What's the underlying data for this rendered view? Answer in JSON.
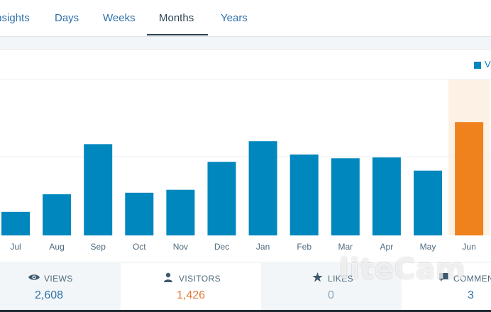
{
  "tabs": [
    {
      "label": "Insights",
      "active": false
    },
    {
      "label": "Days",
      "active": false
    },
    {
      "label": "Weeks",
      "active": false
    },
    {
      "label": "Months",
      "active": true
    },
    {
      "label": "Years",
      "active": false
    }
  ],
  "legend": {
    "label": "Views",
    "color": "#0087be"
  },
  "chart_data": {
    "type": "bar",
    "categories": [
      "Jul",
      "Aug",
      "Sep",
      "Oct",
      "Nov",
      "Dec",
      "Jan",
      "Feb",
      "Mar",
      "Apr",
      "May",
      "Jun"
    ],
    "values": [
      80,
      140,
      310,
      145,
      155,
      250,
      320,
      275,
      262,
      265,
      220,
      385
    ],
    "highlight_index": 11,
    "ylim": [
      0,
      530
    ],
    "grid": true,
    "colors": {
      "bar": "#0087be",
      "highlight": "#f0821e",
      "highlight_band": "#fdf0e4",
      "grid": "#eef1f3"
    }
  },
  "summary": [
    {
      "label": "VIEWS",
      "value": "2,608",
      "icon": "eye-icon",
      "value_color": "#2e71a8"
    },
    {
      "label": "VISITORS",
      "value": "1,426",
      "icon": "person-icon",
      "value_color": "#e07b3a"
    },
    {
      "label": "LIKES",
      "value": "0",
      "icon": "star-icon",
      "value_color": "#87a6bc"
    },
    {
      "label": "COMMENTS",
      "value": "3",
      "icon": "comment-icon",
      "value_color": "#2e71a8"
    }
  ],
  "watermark": {
    "text": "liteCam"
  }
}
